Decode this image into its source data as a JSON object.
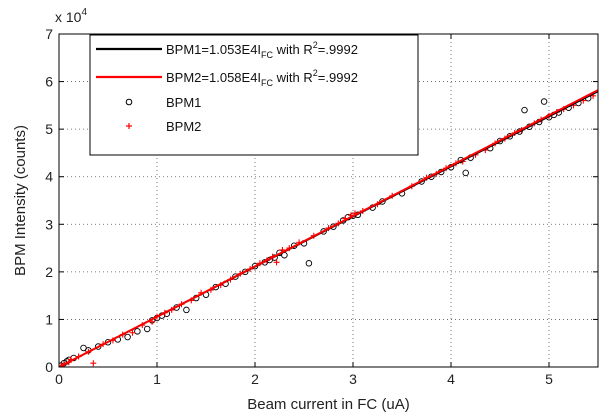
{
  "chart_data": {
    "type": "scatter",
    "xlabel": "Beam current in FC (uA)",
    "ylabel": "BPM Intensity (counts)",
    "exponent_label": "x 10",
    "exponent_power": "4",
    "xlim": [
      0,
      5.5
    ],
    "ylim": [
      0,
      70000
    ],
    "xticks": [
      0,
      1,
      2,
      3,
      4,
      5
    ],
    "yticks": [
      0,
      10000,
      20000,
      30000,
      40000,
      50000,
      60000,
      70000
    ],
    "xtick_labels": [
      "0",
      "1",
      "2",
      "3",
      "4",
      "5"
    ],
    "ytick_labels": [
      "0",
      "1",
      "2",
      "3",
      "4",
      "5",
      "6",
      "7"
    ],
    "grid": true,
    "legend_position": "top-left",
    "legend": [
      {
        "kind": "line",
        "color": "#000000",
        "prefix": "BPM1=1.053E4I",
        "sub": "FC",
        "mid": " with R",
        "sup": "2",
        "suffix": "=.9992"
      },
      {
        "kind": "line",
        "color": "#ff0000",
        "prefix": "BPM2=1.058E4I",
        "sub": "FC",
        "mid": " with R",
        "sup": "2",
        "suffix": "=.9992"
      },
      {
        "kind": "marker-circle",
        "color": "#000000",
        "prefix": "BPM1",
        "sub": "",
        "mid": "",
        "sup": "",
        "suffix": ""
      },
      {
        "kind": "marker-plus",
        "color": "#ff0000",
        "prefix": "BPM2",
        "sub": "",
        "mid": "",
        "sup": "",
        "suffix": ""
      }
    ],
    "fit_lines": [
      {
        "name": "BPM1=1.053E4I with R2=.9992",
        "color": "#000000",
        "slope": 10530,
        "x": [
          0,
          5.5
        ]
      },
      {
        "name": "BPM2=1.058E4I with R2=.9992",
        "color": "#ff0000",
        "slope": 10580,
        "x": [
          0,
          5.5
        ]
      }
    ],
    "series": [
      {
        "name": "BPM1",
        "marker": "circle",
        "color": "#000000",
        "points": [
          [
            0.02,
            300
          ],
          [
            0.05,
            800
          ],
          [
            0.08,
            1200
          ],
          [
            0.1,
            1500
          ],
          [
            0.15,
            1900
          ],
          [
            0.25,
            4000
          ],
          [
            0.3,
            3500
          ],
          [
            0.4,
            4300
          ],
          [
            0.5,
            5200
          ],
          [
            0.6,
            5800
          ],
          [
            0.7,
            6300
          ],
          [
            0.8,
            7500
          ],
          [
            0.9,
            8000
          ],
          [
            0.95,
            9800
          ],
          [
            1.0,
            10300
          ],
          [
            1.05,
            10800
          ],
          [
            1.1,
            11200
          ],
          [
            1.2,
            12500
          ],
          [
            1.3,
            12000
          ],
          [
            1.4,
            14500
          ],
          [
            1.5,
            15200
          ],
          [
            1.6,
            16800
          ],
          [
            1.7,
            17500
          ],
          [
            1.8,
            19000
          ],
          [
            1.9,
            20000
          ],
          [
            2.0,
            21200
          ],
          [
            2.1,
            22000
          ],
          [
            2.15,
            22500
          ],
          [
            2.2,
            23000
          ],
          [
            2.25,
            24000
          ],
          [
            2.3,
            23500
          ],
          [
            2.4,
            25500
          ],
          [
            2.5,
            26000
          ],
          [
            2.55,
            21800
          ],
          [
            2.7,
            28500
          ],
          [
            2.8,
            29500
          ],
          [
            2.9,
            30800
          ],
          [
            2.95,
            31500
          ],
          [
            3.0,
            31800
          ],
          [
            3.05,
            32000
          ],
          [
            3.2,
            33500
          ],
          [
            3.3,
            34800
          ],
          [
            3.5,
            36500
          ],
          [
            3.7,
            39000
          ],
          [
            3.8,
            40000
          ],
          [
            3.9,
            41000
          ],
          [
            4.0,
            42000
          ],
          [
            4.1,
            43500
          ],
          [
            4.15,
            40800
          ],
          [
            4.2,
            44000
          ],
          [
            4.4,
            46000
          ],
          [
            4.5,
            47500
          ],
          [
            4.6,
            48500
          ],
          [
            4.7,
            49500
          ],
          [
            4.75,
            54000
          ],
          [
            4.8,
            50500
          ],
          [
            4.9,
            51500
          ],
          [
            4.95,
            55800
          ],
          [
            5.0,
            52500
          ],
          [
            5.05,
            53000
          ],
          [
            5.1,
            53500
          ],
          [
            5.2,
            54500
          ],
          [
            5.3,
            55500
          ],
          [
            5.4,
            56500
          ]
        ]
      },
      {
        "name": "BPM2",
        "marker": "plus",
        "color": "#ff0000",
        "points": [
          [
            0.02,
            200
          ],
          [
            0.05,
            600
          ],
          [
            0.1,
            1000
          ],
          [
            0.12,
            1600
          ],
          [
            0.2,
            2200
          ],
          [
            0.3,
            3200
          ],
          [
            0.35,
            800
          ],
          [
            0.45,
            4800
          ],
          [
            0.55,
            5600
          ],
          [
            0.65,
            6800
          ],
          [
            0.75,
            7200
          ],
          [
            0.85,
            8800
          ],
          [
            0.95,
            9500
          ],
          [
            1.0,
            10600
          ],
          [
            1.08,
            11400
          ],
          [
            1.15,
            12000
          ],
          [
            1.25,
            13200
          ],
          [
            1.35,
            14000
          ],
          [
            1.45,
            15600
          ],
          [
            1.55,
            16200
          ],
          [
            1.65,
            17200
          ],
          [
            1.75,
            18400
          ],
          [
            1.85,
            19600
          ],
          [
            1.95,
            20600
          ],
          [
            2.05,
            21800
          ],
          [
            2.12,
            22400
          ],
          [
            2.18,
            23200
          ],
          [
            2.22,
            22000
          ],
          [
            2.28,
            24600
          ],
          [
            2.35,
            25000
          ],
          [
            2.45,
            26200
          ],
          [
            2.6,
            27600
          ],
          [
            2.75,
            29200
          ],
          [
            2.85,
            30200
          ],
          [
            2.92,
            31200
          ],
          [
            2.98,
            31900
          ],
          [
            3.02,
            32300
          ],
          [
            3.1,
            32800
          ],
          [
            3.25,
            34200
          ],
          [
            3.4,
            36000
          ],
          [
            3.6,
            38000
          ],
          [
            3.75,
            39800
          ],
          [
            3.85,
            40600
          ],
          [
            3.95,
            41800
          ],
          [
            4.05,
            42800
          ],
          [
            4.12,
            43200
          ],
          [
            4.25,
            44600
          ],
          [
            4.35,
            45600
          ],
          [
            4.45,
            47000
          ],
          [
            4.55,
            48000
          ],
          [
            4.65,
            49200
          ],
          [
            4.72,
            49800
          ],
          [
            4.85,
            51200
          ],
          [
            4.92,
            52000
          ],
          [
            5.0,
            52800
          ],
          [
            5.08,
            53600
          ],
          [
            5.15,
            54200
          ],
          [
            5.25,
            55000
          ],
          [
            5.35,
            56000
          ],
          [
            5.45,
            57000
          ]
        ]
      }
    ]
  }
}
